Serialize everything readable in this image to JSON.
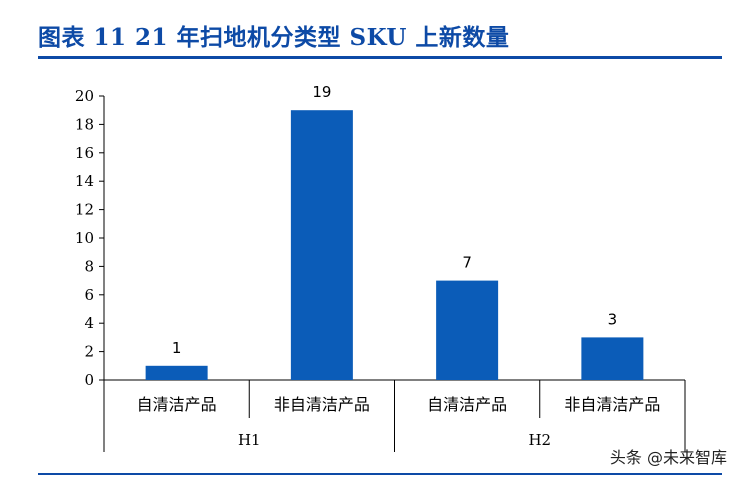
{
  "title": "图表 11    21 年扫地机分类型 SKU 上新数量",
  "watermark": "头条 @未来智库",
  "chart_data": {
    "type": "bar",
    "groups": [
      "H1",
      "H2"
    ],
    "categories": [
      "自清洁产品",
      "非自清洁产品",
      "自清洁产品",
      "非自清洁产品"
    ],
    "group_of_category": [
      "H1",
      "H1",
      "H2",
      "H2"
    ],
    "values": [
      1,
      19,
      7,
      3
    ],
    "data_labels": [
      "1",
      "19",
      "7",
      "3"
    ],
    "yticks": [
      0,
      2,
      4,
      6,
      8,
      10,
      12,
      14,
      16,
      18,
      20
    ],
    "ylim": [
      0,
      20
    ],
    "grid": false,
    "bar_color": "#0b5cb8"
  }
}
